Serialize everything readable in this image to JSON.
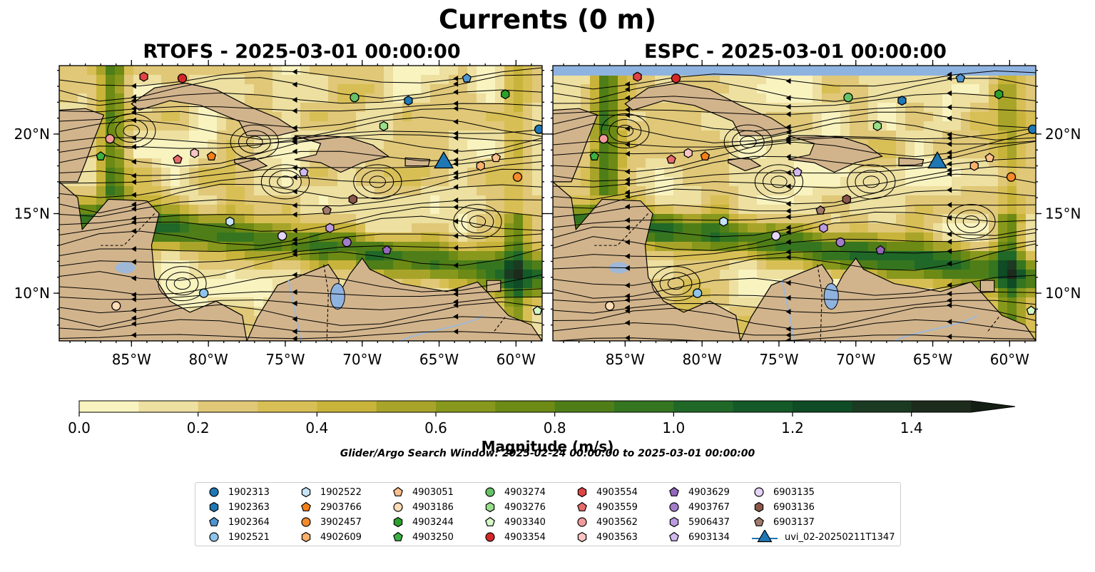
{
  "figure": {
    "suptitle": "Currents (0 m)",
    "search_window": "Glider/Argo Search Window: 2025-02-24 00:00:00 to 2025-03-01 00:00:00"
  },
  "colors": {
    "land": "#d2b48c",
    "water_no_data": "#8fb3e0",
    "river": "#9fb8d8",
    "colormap": [
      "#f9f3c0",
      "#ede0a0",
      "#e0c878",
      "#d8bf55",
      "#c8b43a",
      "#a8a42a",
      "#88981c",
      "#6c8a14",
      "#4f7e18",
      "#357520",
      "#206828",
      "#135a28",
      "#0f4b24",
      "#1a3b22",
      "#1c2b1c",
      "#141e14"
    ]
  },
  "chart_data": [
    {
      "type": "heatmap",
      "title": "RTOFS - 2025-03-01 00:00:00",
      "model": "RTOFS",
      "xlim": [
        -89.7,
        -58.3
      ],
      "ylim": [
        7.0,
        24.3
      ],
      "xticks": [
        -85,
        -80,
        -75,
        -70,
        -65,
        -60
      ],
      "xtick_labels": [
        "85°W",
        "80°W",
        "75°W",
        "70°W",
        "65°W",
        "60°W"
      ],
      "yticks": [
        10,
        15,
        20
      ],
      "ytick_labels": [
        "10°N",
        "15°N",
        "20°N"
      ],
      "ytick_side": "left",
      "field": "current magnitude with streamlines",
      "markers": [
        {
          "id": "1902313",
          "lon": -58.5,
          "lat": 20.3
        },
        {
          "id": "1902363",
          "lon": -67.0,
          "lat": 22.1
        },
        {
          "id": "1902364",
          "lon": -63.2,
          "lat": 23.5
        },
        {
          "id": "1902521",
          "lon": -80.3,
          "lat": 10.0
        },
        {
          "id": "1902522",
          "lon": -78.6,
          "lat": 14.5
        },
        {
          "id": "2903766",
          "lon": -79.8,
          "lat": 18.6
        },
        {
          "id": "3902457",
          "lon": -59.9,
          "lat": 17.3
        },
        {
          "id": "4902609",
          "lon": -62.3,
          "lat": 18.0
        },
        {
          "id": "4903051",
          "lon": -61.3,
          "lat": 18.5
        },
        {
          "id": "4903186",
          "lon": -86.0,
          "lat": 9.2
        },
        {
          "id": "4903244",
          "lon": -60.7,
          "lat": 22.5
        },
        {
          "id": "4903250",
          "lon": -87.0,
          "lat": 18.6
        },
        {
          "id": "4903274",
          "lon": -70.5,
          "lat": 22.3
        },
        {
          "id": "4903276",
          "lon": -68.6,
          "lat": 20.5
        },
        {
          "id": "4903340",
          "lon": -58.6,
          "lat": 8.9
        },
        {
          "id": "4903354",
          "lon": -81.7,
          "lat": 23.5
        },
        {
          "id": "4903554",
          "lon": -84.2,
          "lat": 23.6
        },
        {
          "id": "4903559",
          "lon": -82.0,
          "lat": 18.4
        },
        {
          "id": "4903562",
          "lon": -86.4,
          "lat": 19.7
        },
        {
          "id": "4903563",
          "lon": -80.9,
          "lat": 18.8
        },
        {
          "id": "4903629",
          "lon": -68.4,
          "lat": 12.7
        },
        {
          "id": "4903767",
          "lon": -71.0,
          "lat": 13.2
        },
        {
          "id": "5906437",
          "lon": -72.1,
          "lat": 14.1
        },
        {
          "id": "6903134",
          "lon": -73.8,
          "lat": 17.6
        },
        {
          "id": "6903135",
          "lon": -75.2,
          "lat": 13.6
        },
        {
          "id": "6903136",
          "lon": -70.6,
          "lat": 15.9
        },
        {
          "id": "6903137",
          "lon": -72.3,
          "lat": 15.2
        },
        {
          "id": "uvi_02-20250211T1347",
          "lon": -64.7,
          "lat": 18.2
        }
      ]
    },
    {
      "type": "heatmap",
      "title": "ESPC - 2025-03-01 00:00:00",
      "model": "ESPC",
      "xlim": [
        -89.7,
        -58.3
      ],
      "ylim": [
        7.0,
        24.3
      ],
      "xticks": [
        -85,
        -80,
        -75,
        -70,
        -65,
        -60
      ],
      "xtick_labels": [
        "85°W",
        "80°W",
        "75°W",
        "70°W",
        "65°W",
        "60°W"
      ],
      "yticks": [
        10,
        15,
        20
      ],
      "ytick_labels": [
        "10°N",
        "15°N",
        "20°N"
      ],
      "ytick_side": "right",
      "field": "current magnitude with streamlines",
      "markers": "same as RTOFS panel"
    },
    {
      "type": "colorbar",
      "label": "Magnitude (m/s)",
      "range": [
        0.0,
        1.5
      ],
      "extend": "max",
      "levels": 15,
      "ticks": [
        0.0,
        0.2,
        0.4,
        0.6,
        0.8,
        1.0,
        1.2,
        1.4
      ],
      "tick_labels": [
        "0.0",
        "0.2",
        "0.4",
        "0.6",
        "0.8",
        "1.0",
        "1.2",
        "1.4"
      ]
    }
  ],
  "legend": {
    "placement": "bottom-center",
    "items": [
      {
        "label": "1902313",
        "color": "#1f77b4",
        "shape": "circle"
      },
      {
        "label": "1902363",
        "color": "#1f77b4",
        "shape": "hexagon"
      },
      {
        "label": "1902364",
        "color": "#4f95d0",
        "shape": "pentagon"
      },
      {
        "label": "1902521",
        "color": "#8ec4ea",
        "shape": "circle"
      },
      {
        "label": "1902522",
        "color": "#c6e4f7",
        "shape": "hexagon"
      },
      {
        "label": "2903766",
        "color": "#f57f17",
        "shape": "pentagon"
      },
      {
        "label": "3902457",
        "color": "#f58a2a",
        "shape": "circle"
      },
      {
        "label": "4902609",
        "color": "#fbb06b",
        "shape": "hexagon"
      },
      {
        "label": "4903051",
        "color": "#fdc08c",
        "shape": "pentagon"
      },
      {
        "label": "4903186",
        "color": "#fddcb6",
        "shape": "circle"
      },
      {
        "label": "4903244",
        "color": "#2ca02c",
        "shape": "hexagon"
      },
      {
        "label": "4903250",
        "color": "#3cb043",
        "shape": "pentagon"
      },
      {
        "label": "4903274",
        "color": "#66c266",
        "shape": "circle"
      },
      {
        "label": "4903276",
        "color": "#98df8a",
        "shape": "hexagon"
      },
      {
        "label": "4903340",
        "color": "#d4f7c6",
        "shape": "pentagon"
      },
      {
        "label": "4903354",
        "color": "#d62728",
        "shape": "circle"
      },
      {
        "label": "4903554",
        "color": "#e04444",
        "shape": "hexagon"
      },
      {
        "label": "4903559",
        "color": "#e86a6a",
        "shape": "pentagon"
      },
      {
        "label": "4903562",
        "color": "#f29a9a",
        "shape": "circle"
      },
      {
        "label": "4903563",
        "color": "#fbc4c4",
        "shape": "hexagon"
      },
      {
        "label": "4903629",
        "color": "#9467bd",
        "shape": "pentagon"
      },
      {
        "label": "4903767",
        "color": "#a37ccc",
        "shape": "circle"
      },
      {
        "label": "5906437",
        "color": "#bb9ae0",
        "shape": "hexagon"
      },
      {
        "label": "6903134",
        "color": "#d1b8ef",
        "shape": "pentagon"
      },
      {
        "label": "6903135",
        "color": "#e5d4f9",
        "shape": "circle"
      },
      {
        "label": "6903136",
        "color": "#8c564b",
        "shape": "hexagon"
      },
      {
        "label": "6903137",
        "color": "#a07a6c",
        "shape": "pentagon"
      },
      {
        "label": "uvi_02-20250211T1347",
        "color": "#1f77b4",
        "shape": "triangle"
      }
    ]
  }
}
